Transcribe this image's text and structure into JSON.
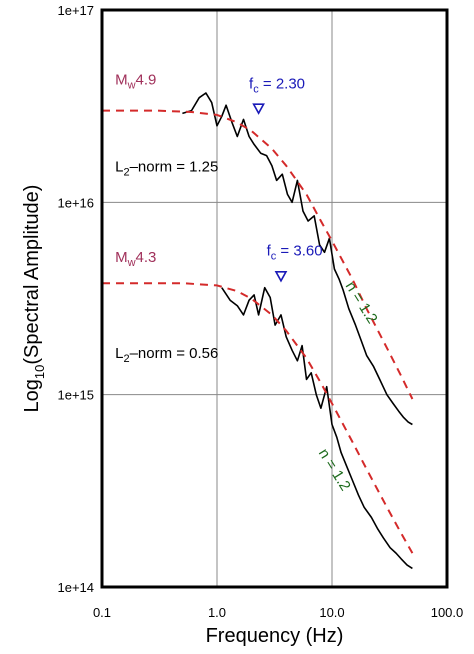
{
  "chart_data": {
    "type": "line",
    "title": "",
    "xlabel": "Frequency (Hz)",
    "ylabel_main": "Log",
    "ylabel_sub": "10",
    "ylabel_rest": "(Spectral Amplitude)",
    "xscale": "log",
    "yscale": "log",
    "xlim": [
      0.1,
      100.0
    ],
    "ylim": [
      100000000000000.0,
      1e+17
    ],
    "grid": true,
    "x_ticks": [
      0.1,
      1.0,
      10.0,
      100.0
    ],
    "x_tick_labels": [
      "0.1",
      "1.0",
      "10.0",
      "100.0"
    ],
    "y_ticks": [
      100000000000000.0,
      1000000000000000.0,
      1e+16,
      1e+17
    ],
    "y_tick_labels": [
      "1e+14",
      "1e+15",
      "1e+16",
      "1e+17"
    ],
    "colors": {
      "observed": "#000000",
      "model": "#d42a2a",
      "magnitude": "#a0305a",
      "corner": "#1a1ab8",
      "falloff": "#1d6b1d",
      "grid": "#888888"
    },
    "series": [
      {
        "kind": "observed",
        "points": [
          [
            0.5,
            2.9e+16
          ],
          [
            0.6,
            3e+16
          ],
          [
            0.7,
            3.5e+16
          ],
          [
            0.8,
            3.7e+16
          ],
          [
            0.9,
            3.3e+16
          ],
          [
            1.0,
            2.5e+16
          ],
          [
            1.1,
            2.8e+16
          ],
          [
            1.2,
            3.2e+16
          ],
          [
            1.35,
            2.6e+16
          ],
          [
            1.5,
            2.2e+16
          ],
          [
            1.7,
            2.7e+16
          ],
          [
            1.9,
            2.2e+16
          ],
          [
            2.1,
            2e+16
          ],
          [
            2.4,
            1.8e+16
          ],
          [
            2.7,
            1.75e+16
          ],
          [
            3.0,
            1.55e+16
          ],
          [
            3.3,
            1.3e+16
          ],
          [
            3.7,
            1.4e+16
          ],
          [
            4.1,
            1.1e+16
          ],
          [
            4.5,
            1e+16
          ],
          [
            5.0,
            1.3e+16
          ],
          [
            5.6,
            9000000000000000.0
          ],
          [
            6.2,
            8000000000000000.0
          ],
          [
            7.0,
            8500000000000000.0
          ],
          [
            7.8,
            6000000000000000.0
          ],
          [
            8.6,
            5500000000000000.0
          ],
          [
            9.5,
            6500000000000000.0
          ],
          [
            10.5,
            4500000000000000.0
          ],
          [
            11.5,
            4000000000000000.0
          ],
          [
            12.5,
            3500000000000000.0
          ],
          [
            14.0,
            2800000000000000.0
          ],
          [
            16.0,
            2300000000000000.0
          ],
          [
            18.0,
            1900000000000000.0
          ],
          [
            20.0,
            1600000000000000.0
          ],
          [
            23.0,
            1400000000000000.0
          ],
          [
            26.0,
            1200000000000000.0
          ],
          [
            30.0,
            1000000000000000.0
          ],
          [
            34.0,
            900000000000000.0
          ],
          [
            38.0,
            820000000000000.0
          ],
          [
            42.0,
            760000000000000.0
          ],
          [
            46.0,
            720000000000000.0
          ],
          [
            50.0,
            700000000000000.0
          ]
        ]
      },
      {
        "kind": "model",
        "points": [
          [
            0.1,
            3e+16
          ],
          [
            0.3,
            3e+16
          ],
          [
            0.6,
            2.95e+16
          ],
          [
            1.0,
            2.85e+16
          ],
          [
            1.5,
            2.6e+16
          ],
          [
            2.0,
            2.35e+16
          ],
          [
            3.0,
            1.9e+16
          ],
          [
            4.0,
            1.55e+16
          ],
          [
            6.0,
            1.1e+16
          ],
          [
            8.0,
            8000000000000000.0
          ],
          [
            10.0,
            6300000000000000.0
          ],
          [
            15.0,
            4000000000000000.0
          ],
          [
            20.0,
            2800000000000000.0
          ],
          [
            30.0,
            1750000000000000.0
          ],
          [
            40.0,
            1250000000000000.0
          ],
          [
            50.0,
            950000000000000.0
          ]
        ]
      },
      {
        "kind": "observed",
        "points": [
          [
            1.1,
            3600000000000000.0
          ],
          [
            1.3,
            3100000000000000.0
          ],
          [
            1.5,
            2900000000000000.0
          ],
          [
            1.7,
            2600000000000000.0
          ],
          [
            1.9,
            3100000000000000.0
          ],
          [
            2.1,
            3300000000000000.0
          ],
          [
            2.3,
            2600000000000000.0
          ],
          [
            2.6,
            3600000000000000.0
          ],
          [
            2.9,
            3200000000000000.0
          ],
          [
            3.2,
            2300000000000000.0
          ],
          [
            3.6,
            2600000000000000.0
          ],
          [
            4.0,
            2000000000000000.0
          ],
          [
            4.5,
            1700000000000000.0
          ],
          [
            5.0,
            1500000000000000.0
          ],
          [
            5.5,
            1800000000000000.0
          ],
          [
            6.0,
            1200000000000000.0
          ],
          [
            6.6,
            1300000000000000.0
          ],
          [
            7.3,
            1000000000000000.0
          ],
          [
            8.0,
            850000000000000.0
          ],
          [
            9.0,
            1100000000000000.0
          ],
          [
            10.0,
            700000000000000.0
          ],
          [
            11.0,
            600000000000000.0
          ],
          [
            12.0,
            500000000000000.0
          ],
          [
            13.5,
            420000000000000.0
          ],
          [
            15.0,
            360000000000000.0
          ],
          [
            17.0,
            300000000000000.0
          ],
          [
            19.0,
            260000000000000.0
          ],
          [
            22.0,
            230000000000000.0
          ],
          [
            25.0,
            200000000000000.0
          ],
          [
            28.0,
            180000000000000.0
          ],
          [
            32.0,
            160000000000000.0
          ],
          [
            36.0,
            150000000000000.0
          ],
          [
            40.0,
            140000000000000.0
          ],
          [
            45.0,
            130000000000000.0
          ],
          [
            50.0,
            125000000000000.0
          ]
        ]
      },
      {
        "kind": "model",
        "points": [
          [
            0.1,
            3800000000000000.0
          ],
          [
            0.5,
            3800000000000000.0
          ],
          [
            1.0,
            3700000000000000.0
          ],
          [
            1.5,
            3450000000000000.0
          ],
          [
            2.0,
            3150000000000000.0
          ],
          [
            3.0,
            2600000000000000.0
          ],
          [
            4.0,
            2150000000000000.0
          ],
          [
            6.0,
            1550000000000000.0
          ],
          [
            8.0,
            1150000000000000.0
          ],
          [
            10.0,
            900000000000000.0
          ],
          [
            15.0,
            570000000000000.0
          ],
          [
            20.0,
            410000000000000.0
          ],
          [
            30.0,
            260000000000000.0
          ],
          [
            40.0,
            190000000000000.0
          ],
          [
            50.0,
            150000000000000.0
          ]
        ]
      }
    ],
    "annotations": [
      {
        "kind": "magnitude",
        "main": "M",
        "sub": "w",
        "rest": "4.9",
        "x": 0.13,
        "y": 4.1e+16
      },
      {
        "kind": "corner",
        "main": "f",
        "sub": "c",
        "rest": " = 2.30",
        "x": 1.9,
        "y": 3.9e+16,
        "marker_x": 2.3,
        "marker_y": 3.05e+16
      },
      {
        "kind": "norm",
        "main": "L",
        "sub": "2",
        "rest": "–norm = 1.25",
        "x": 0.13,
        "y": 1.45e+16
      },
      {
        "kind": "falloff",
        "text": "n = 1.2",
        "x": 13.0,
        "y": 3700000000000000.0,
        "angle": 58
      },
      {
        "kind": "magnitude",
        "main": "M",
        "sub": "w",
        "rest": "4.3",
        "x": 0.13,
        "y": 4900000000000000.0
      },
      {
        "kind": "corner",
        "main": "f",
        "sub": "c",
        "rest": " = 3.60",
        "x": 2.7,
        "y": 5300000000000000.0,
        "marker_x": 3.6,
        "marker_y": 4100000000000000.0
      },
      {
        "kind": "norm",
        "main": "L",
        "sub": "2",
        "rest": "–norm = 0.56",
        "x": 0.13,
        "y": 1550000000000000.0
      },
      {
        "kind": "falloff",
        "text": "n = 1.2",
        "x": 7.6,
        "y": 500000000000000.0,
        "angle": 58
      }
    ]
  }
}
